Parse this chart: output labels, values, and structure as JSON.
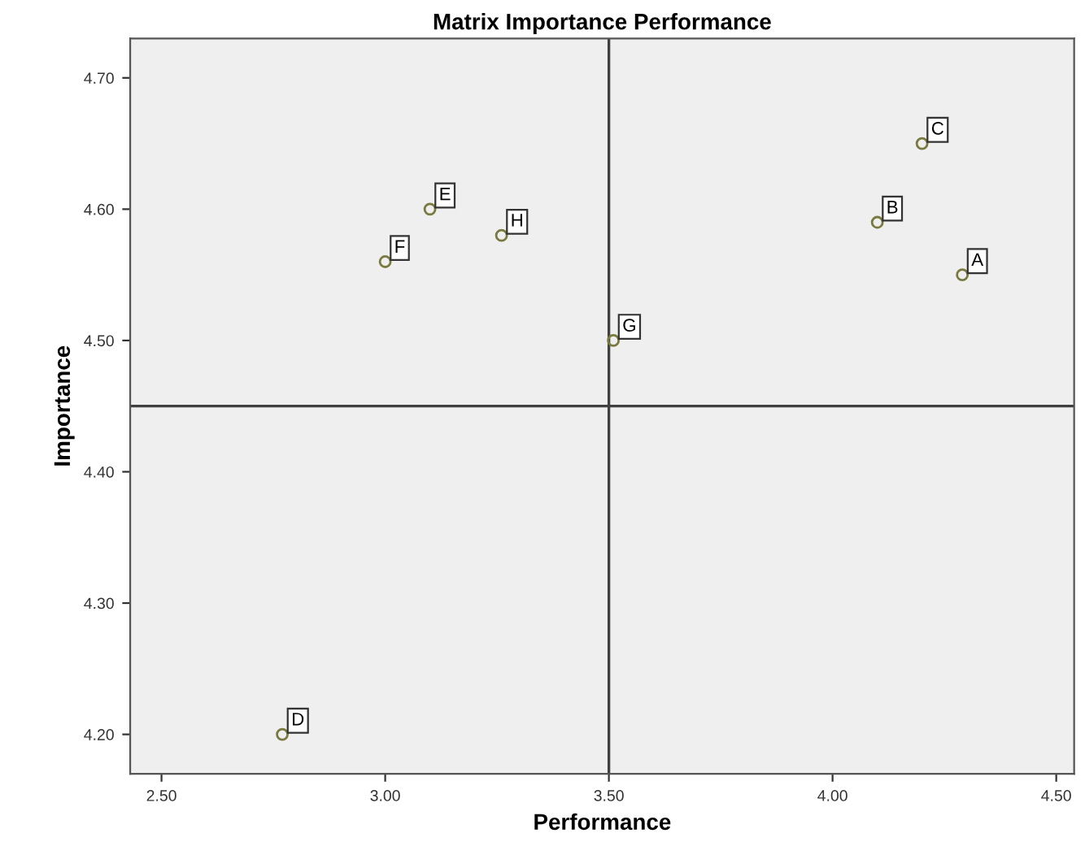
{
  "chart_data": {
    "type": "scatter",
    "title": "Matrix Importance Performance",
    "xlabel": "Performance",
    "ylabel": "Importance",
    "x": [
      4.29,
      4.1,
      4.2,
      2.77,
      3.1,
      3.0,
      3.51,
      3.26
    ],
    "series": [
      {
        "color": "#7a7a40",
        "values": [
          4.55,
          4.59,
          4.65,
          4.2,
          4.6,
          4.56,
          4.5,
          4.58
        ]
      }
    ],
    "annotations": [
      {
        "text": "A",
        "x": 4.29,
        "y": 4.55
      },
      {
        "text": "B",
        "x": 4.1,
        "y": 4.59
      },
      {
        "text": "C",
        "x": 4.2,
        "y": 4.65
      },
      {
        "text": "D",
        "x": 2.77,
        "y": 4.2
      },
      {
        "text": "E",
        "x": 3.1,
        "y": 4.6
      },
      {
        "text": "F",
        "x": 3.0,
        "y": 4.56
      },
      {
        "text": "G",
        "x": 3.51,
        "y": 4.5
      },
      {
        "text": "H",
        "x": 3.26,
        "y": 4.58
      }
    ],
    "ref_lines": [
      {
        "axis": "x",
        "value": 3.5,
        "color": "#404040"
      },
      {
        "axis": "y",
        "value": 4.45,
        "color": "#404040"
      }
    ],
    "xlim": [
      2.43,
      4.54
    ],
    "ylim": [
      4.17,
      4.73
    ],
    "xticks": [
      {
        "value": 2.5,
        "label": "2.50"
      },
      {
        "value": 3.0,
        "label": "3.00"
      },
      {
        "value": 3.5,
        "label": "3.50"
      },
      {
        "value": 4.0,
        "label": "4.00"
      },
      {
        "value": 4.5,
        "label": "4.50"
      }
    ],
    "yticks": [
      {
        "value": 4.2,
        "label": "4.20"
      },
      {
        "value": 4.3,
        "label": "4.30"
      },
      {
        "value": 4.4,
        "label": "4.40"
      },
      {
        "value": 4.5,
        "label": "4.50"
      },
      {
        "value": 4.6,
        "label": "4.60"
      },
      {
        "value": 4.7,
        "label": "4.70"
      }
    ],
    "grid": false,
    "legend": false,
    "marker": "circle"
  }
}
